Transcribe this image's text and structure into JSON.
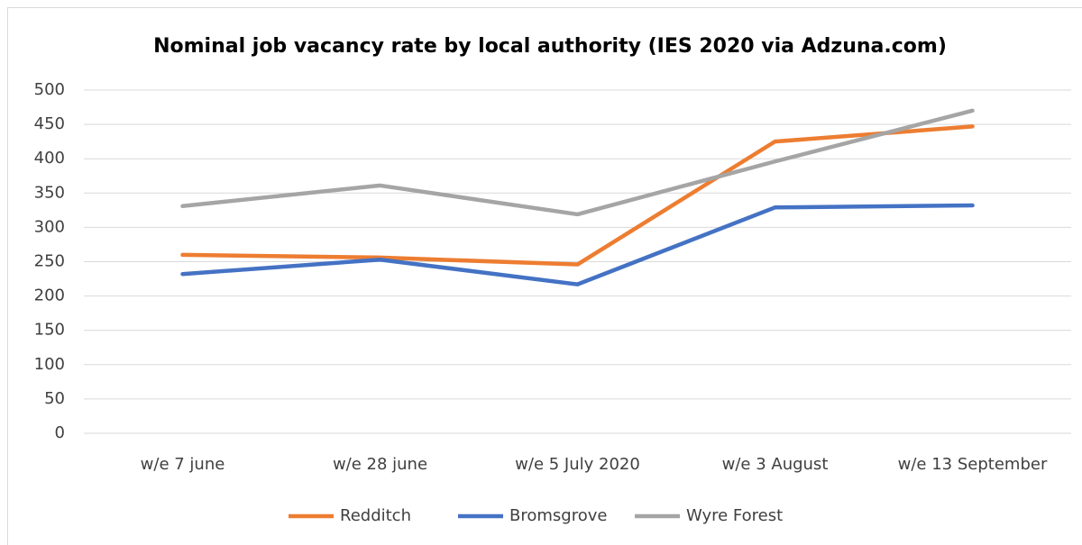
{
  "chart_data": {
    "type": "line",
    "title": "Nominal job vacancy rate by local authority (IES 2020 via Adzuna.com)",
    "categories": [
      "w/e 7 june",
      "w/e 28 june",
      "w/e 5 July 2020",
      "w/e 3 August",
      "w/e 13 September"
    ],
    "series": [
      {
        "name": "Redditch",
        "color": "#ed7d31",
        "values": [
          260,
          256,
          246,
          425,
          447
        ]
      },
      {
        "name": "Bromsgrove",
        "color": "#4472c4",
        "values": [
          232,
          253,
          217,
          329,
          332
        ]
      },
      {
        "name": "Wyre Forest",
        "color": "#a5a5a5",
        "values": [
          331,
          361,
          319,
          396,
          470
        ]
      }
    ],
    "ylim": [
      0,
      500
    ],
    "yticks": [
      0,
      50,
      100,
      150,
      200,
      250,
      300,
      350,
      400,
      450,
      500
    ],
    "grid": true,
    "legend": "bottom"
  }
}
